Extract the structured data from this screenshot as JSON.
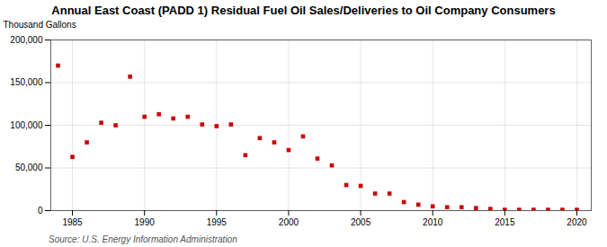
{
  "chart_data": {
    "type": "scatter",
    "title": "Annual East Coast (PADD 1) Residual Fuel Oil Sales/Deliveries to Oil Company Consumers",
    "ylabel": "Thousand Gallons",
    "annotations": [
      "Source: U.S. Energy Information Administration"
    ],
    "x": [
      1984,
      1985,
      1986,
      1987,
      1988,
      1989,
      1990,
      1991,
      1992,
      1993,
      1994,
      1995,
      1996,
      1997,
      1998,
      1999,
      2000,
      2001,
      2002,
      2003,
      2004,
      2005,
      2006,
      2007,
      2008,
      2009,
      2010,
      2011,
      2012,
      2013,
      2014,
      2015,
      2016,
      2017,
      2018,
      2019,
      2020
    ],
    "values": [
      170000,
      63000,
      80000,
      103000,
      100000,
      157000,
      110000,
      113000,
      108000,
      110000,
      101000,
      99000,
      101000,
      65000,
      85000,
      80000,
      71000,
      87000,
      61000,
      53000,
      30000,
      29000,
      20000,
      20000,
      10000,
      7000,
      5000,
      4000,
      4000,
      3000,
      2000,
      1000,
      1000,
      1000,
      1000,
      1000,
      1000
    ],
    "color": "#cc0000",
    "marker": "square",
    "xlim": [
      1983.5,
      2021
    ],
    "xticks": [
      1985,
      1990,
      1995,
      2000,
      2005,
      2010,
      2015,
      2020
    ],
    "ylim": [
      0,
      200000
    ],
    "yticks": [
      0,
      {
        "value": 50000,
        "label": "50,000"
      },
      {
        "value": 100000,
        "label": "100,000"
      },
      {
        "value": 150000,
        "label": "150,000"
      },
      {
        "value": 200000,
        "label": "200,000"
      }
    ],
    "grid": true
  }
}
